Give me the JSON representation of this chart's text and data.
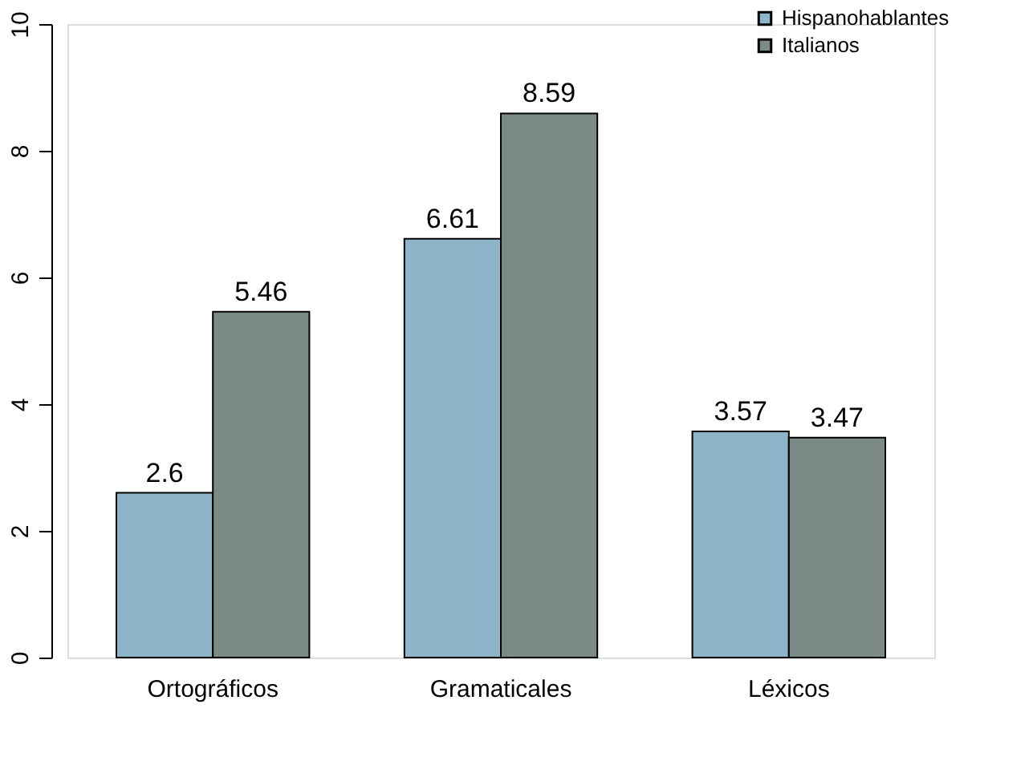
{
  "chart_data": {
    "type": "bar",
    "categories": [
      "Ortográficos",
      "Gramaticales",
      "Léxicos"
    ],
    "series": [
      {
        "name": "Hispanohablantes",
        "color": "#8db4c9",
        "values": [
          2.6,
          6.61,
          3.57
        ]
      },
      {
        "name": "Italianos",
        "color": "#798a87",
        "values": [
          5.46,
          8.59,
          3.47
        ]
      }
    ],
    "ylim": [
      0,
      10
    ],
    "yticks": [
      0,
      2,
      4,
      6,
      8,
      10
    ],
    "grid": false,
    "legend": "top right",
    "data_labels": true
  }
}
